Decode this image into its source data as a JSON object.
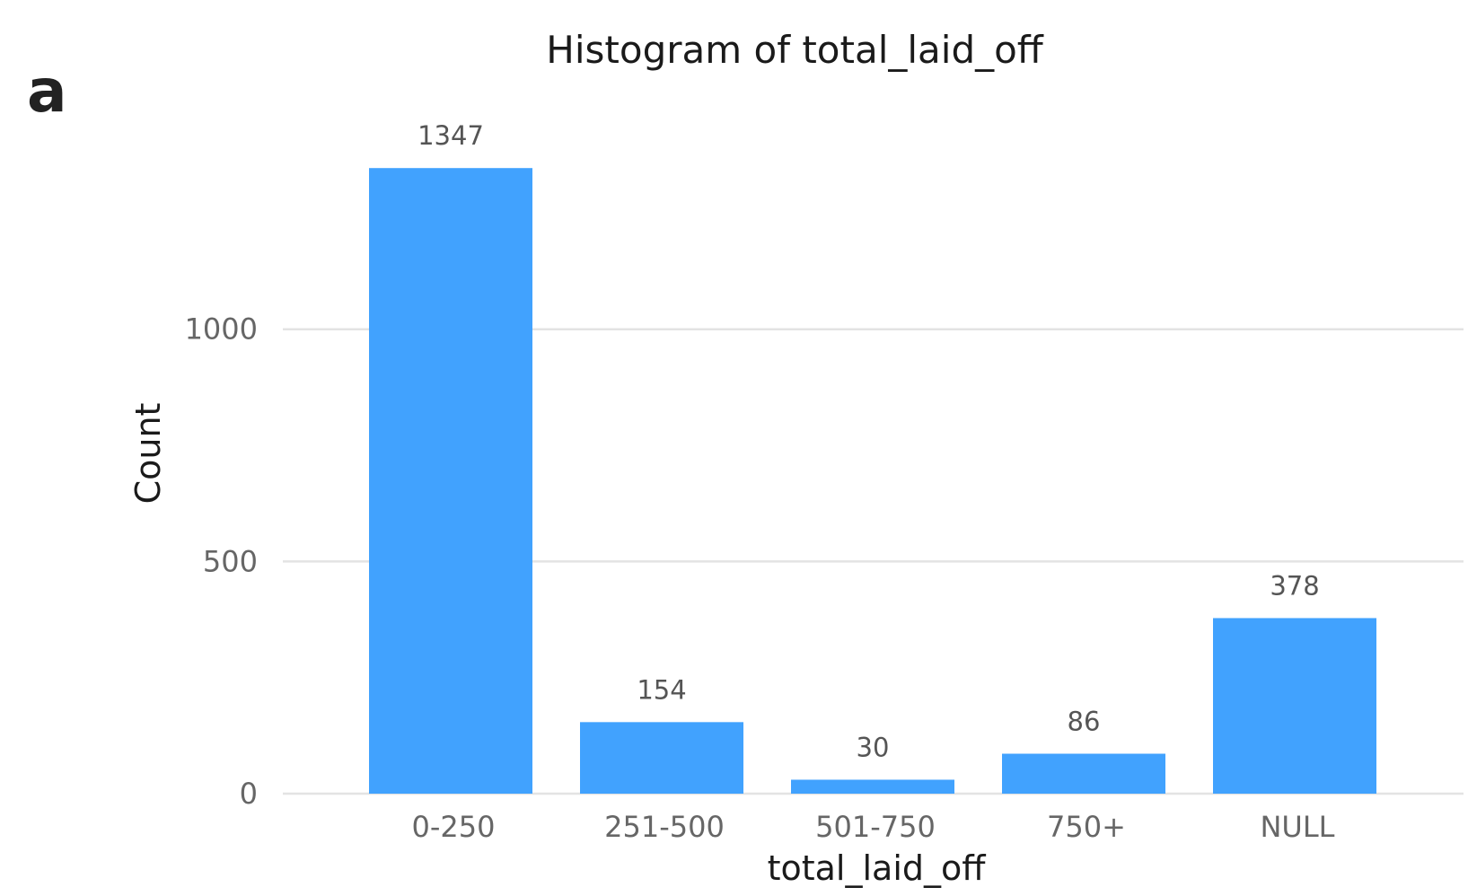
{
  "panel_letter": "a",
  "colors": {
    "bar": "#41a2fe",
    "grid": "#e3e3e3",
    "tick_text": "#666666",
    "title_text": "#1a1a1a"
  },
  "chart_data": {
    "type": "bar",
    "title": "Histogram of total_laid_off",
    "xlabel": "total_laid_off",
    "ylabel": "Count",
    "categories": [
      "0-250",
      "251-500",
      "501-750",
      "750+",
      "NULL"
    ],
    "values": [
      1347,
      154,
      30,
      86,
      378
    ],
    "data_labels": [
      "1347",
      "154",
      "30",
      "86",
      "378"
    ],
    "yticks": [
      0,
      500,
      1000
    ],
    "ylim": [
      0,
      1400
    ],
    "grid": true,
    "legend": "none"
  }
}
